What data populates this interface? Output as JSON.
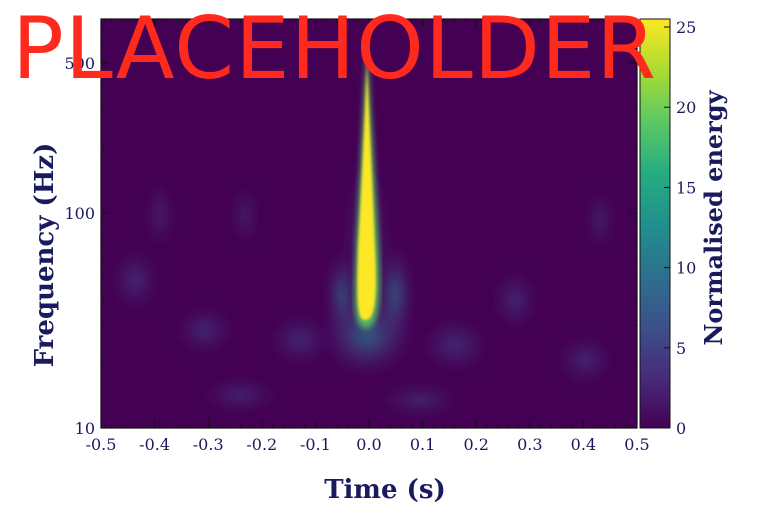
{
  "watermark": "PLACEHOLDER",
  "chart_data": {
    "type": "heatmap",
    "xlabel": "Time (s)",
    "ylabel": "Frequency (Hz)",
    "colorbar_label": "Normalised energy",
    "xlim": [
      -0.5,
      0.5
    ],
    "ylim": [
      10,
      800
    ],
    "y_scale": "log",
    "x_ticks": [
      -0.5,
      -0.4,
      -0.3,
      -0.2,
      -0.1,
      0.0,
      0.1,
      0.2,
      0.3,
      0.4,
      0.5
    ],
    "x_tick_labels": [
      "-0.5",
      "-0.4",
      "-0.3",
      "-0.2",
      "-0.1",
      "0.0",
      "0.1",
      "0.2",
      "0.3",
      "0.4",
      "0.5"
    ],
    "y_ticks": [
      10,
      100,
      500
    ],
    "y_tick_labels": [
      "10",
      "100",
      "500"
    ],
    "colorbar_range": [
      0,
      25.5
    ],
    "colorbar_ticks": [
      0,
      5,
      10,
      15,
      20,
      25
    ],
    "colorbar_tick_labels": [
      "0",
      "5",
      "10",
      "15",
      "20",
      "25"
    ],
    "colormap": "viridis",
    "colormap_stops": [
      "#440154",
      "#472c7a",
      "#3b518b",
      "#2c718e",
      "#21908d",
      "#27ad81",
      "#5cc863",
      "#aadc32",
      "#fde725"
    ],
    "grid": false,
    "features": [
      {
        "type": "chirp_track",
        "t_center": 0.0,
        "f_start": 35,
        "f_end": 700,
        "peak_energy": 25
      }
    ]
  }
}
